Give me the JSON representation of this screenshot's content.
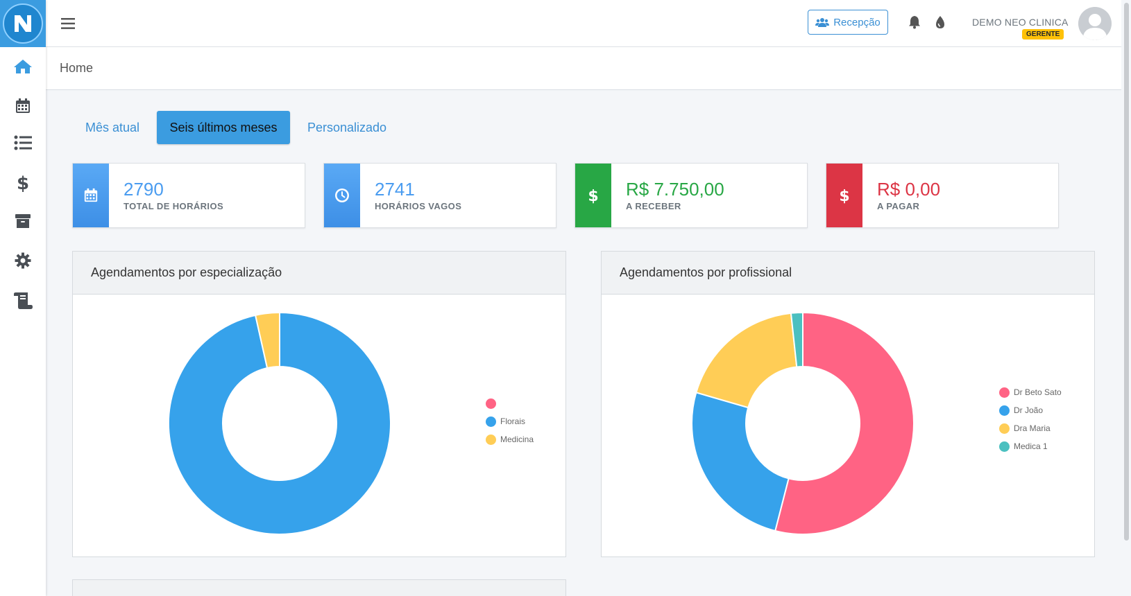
{
  "topbar": {
    "recepcao_label": "Recepção",
    "user_name": "DEMO NEO CLINICA",
    "user_role": "GERENTE"
  },
  "sidebar": {
    "items": [
      {
        "icon": "home-icon",
        "color": "#3b9ce0"
      },
      {
        "icon": "calendar-icon",
        "color": "#4a4f55"
      },
      {
        "icon": "list-icon",
        "color": "#4a4f55"
      },
      {
        "icon": "dollar-icon",
        "color": "#4a4f55"
      },
      {
        "icon": "archive-icon",
        "color": "#4a4f55"
      },
      {
        "icon": "gear-icon",
        "color": "#4a4f55"
      },
      {
        "icon": "scroll-icon",
        "color": "#4a4f55"
      }
    ]
  },
  "breadcrumb": {
    "label": "Home"
  },
  "tabs": [
    {
      "label": "Mês atual",
      "active": false
    },
    {
      "label": "Seis últimos meses",
      "active": true
    },
    {
      "label": "Personalizado",
      "active": false
    }
  ],
  "info_boxes": [
    {
      "value": "2790",
      "label": "TOTAL DE HORÁRIOS",
      "icon": "calendar-icon",
      "color": "#4a9cf0",
      "value_color": "#4a9cf0"
    },
    {
      "value": "2741",
      "label": "HORÁRIOS VAGOS",
      "icon": "clock-icon",
      "color": "#4a9cf0",
      "value_color": "#4a9cf0"
    },
    {
      "value": "R$ 7.750,00",
      "label": "A RECEBER",
      "icon": "dollar-icon",
      "color": "#28a745",
      "value_color": "#28a745"
    },
    {
      "value": "R$ 0,00",
      "label": "A PAGAR",
      "icon": "dollar-icon",
      "color": "#dc3545",
      "value_color": "#dc3545"
    }
  ],
  "cards": {
    "especializacao_title": "Agendamentos por especialização",
    "profissional_title": "Agendamentos por profissional"
  },
  "chart_data": [
    {
      "type": "pie",
      "title": "Agendamentos por especialização",
      "categories": [
        "",
        "Florais",
        "Medicina"
      ],
      "values": [
        0,
        96.5,
        3.5
      ],
      "colors": [
        "#ff6384",
        "#36a2eb",
        "#ffcd56"
      ],
      "donut": true,
      "legend": "right"
    },
    {
      "type": "pie",
      "title": "Agendamentos por profissional",
      "categories": [
        "Dr Beto Sato",
        "Dr João",
        "Dra Maria",
        "Medica 1"
      ],
      "values": [
        54,
        25.5,
        18.8,
        1.7
      ],
      "colors": [
        "#ff6384",
        "#36a2eb",
        "#ffcd56",
        "#4bc0c0"
      ],
      "donut": true,
      "legend": "right"
    }
  ]
}
